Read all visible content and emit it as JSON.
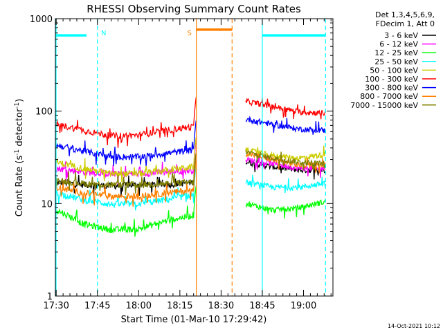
{
  "chart_data": {
    "type": "line",
    "title": "RHESSI Observing Summary Count Rates",
    "xlabel": "Start Time (01-Mar-10 17:29:42)",
    "ylabel_main": "Count Rate (s",
    "ylabel_sup1": "-1",
    "ylabel_mid": " detector",
    "ylabel_sup2": "-1",
    "ylabel_end": ")",
    "y_scale": "log",
    "ylim": [
      1,
      1000
    ],
    "xlim": [
      "17:29:42",
      "19:10:42"
    ],
    "x_ticks": [
      "17:30",
      "17:45",
      "18:00",
      "18:15",
      "18:30",
      "18:45",
      "19:00"
    ],
    "x_tick_minutes": [
      0.3,
      15.3,
      30.3,
      45.3,
      60.3,
      75.3,
      90.3
    ],
    "y_ticks": [
      "1",
      "10",
      "100",
      "1000"
    ],
    "y_tick_values": [
      1,
      10,
      100,
      1000
    ],
    "timestamp": "14-Oct-2021 10:12",
    "legend_header": [
      "Det 1,3,4,5,6,9,",
      "FDecim 1, Att 0"
    ],
    "series": [
      {
        "name": "3 - 6 keV",
        "color": "#000000",
        "pre": [
          17,
          16,
          15.5,
          16,
          16,
          17
        ],
        "post": [
          28,
          25,
          23,
          23
        ]
      },
      {
        "name": "6 - 12 keV",
        "color": "#ff00ff",
        "pre": [
          24,
          22,
          21,
          21,
          22,
          23
        ],
        "post": [
          30,
          27,
          24,
          24
        ]
      },
      {
        "name": "12 - 25 keV",
        "color": "#00ff00",
        "pre": [
          8.5,
          6,
          5.2,
          5.3,
          6.5,
          7.5
        ],
        "post": [
          10,
          8.5,
          9,
          10.5
        ]
      },
      {
        "name": "25 - 50 keV",
        "color": "#00ffff",
        "pre": [
          13,
          11,
          9.8,
          10,
          11,
          12.5
        ],
        "post": [
          17,
          15,
          15,
          16.5
        ]
      },
      {
        "name": "50 - 100 keV",
        "color": "#cccc00",
        "pre": [
          28,
          24,
          21,
          21,
          23,
          25
        ],
        "post": [
          38,
          33,
          31,
          34
        ]
      },
      {
        "name": "100 - 300 keV",
        "color": "#ff0000",
        "pre": [
          72,
          62,
          54,
          55,
          62,
          68
        ],
        "post": [
          128,
          112,
          98,
          95
        ]
      },
      {
        "name": "300 - 800 keV",
        "color": "#0000ff",
        "pre": [
          43,
          37,
          32,
          32,
          35,
          38
        ],
        "post": [
          82,
          72,
          64,
          62
        ]
      },
      {
        "name": "800 - 7000 keV",
        "color": "#ff8000",
        "pre": [
          15,
          13,
          12,
          12,
          13,
          14
        ],
        "post": [
          35,
          30,
          26,
          26
        ]
      },
      {
        "name": "7000 - 15000 keV",
        "color": "#808000",
        "pre": [
          18,
          16.5,
          16,
          16,
          16.5,
          17
        ],
        "post": [
          36,
          31,
          28,
          27
        ]
      }
    ],
    "segments": {
      "pre_start_min": 0.3,
      "pre_end_min": 50.3,
      "post_start_min": 69.3,
      "post_end_min": 98.3
    },
    "markers": [
      {
        "label": "N",
        "color": "#00ffff",
        "bar_start_min": 0.3,
        "bar_end_min": 11.3,
        "bar_value": 660,
        "dashed_at_min": 15.3,
        "solid_at_min": null
      },
      {
        "label": "S",
        "color": "#ff8000",
        "bar_start_min": 51.3,
        "bar_end_min": 64.3,
        "bar_value": 760,
        "dashed_at_min": 64.3,
        "solid_at_min": 51.3
      },
      {
        "label": "",
        "color": "#00ffff",
        "bar_start_min": 75.3,
        "bar_end_min": 98.3,
        "bar_value": 660,
        "dashed_at_min": 98.3,
        "solid_at_min": 75.3
      }
    ]
  }
}
